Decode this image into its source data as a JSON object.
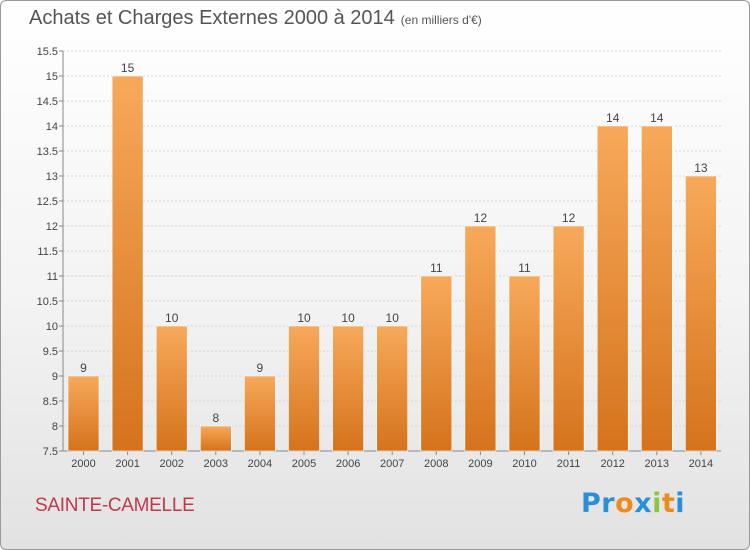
{
  "header": {
    "title": "Achats et Charges Externes 2000 à 2014",
    "unit": "(en milliers d'€)"
  },
  "footer": {
    "commune": "SAINTE-CAMELLE",
    "logo_letters": [
      "P",
      "r",
      "o",
      "x",
      "i",
      "t",
      "i"
    ],
    "logo_colors": [
      "#2a8fd6",
      "#2a8fd6",
      "#f08a1d",
      "#2a8fd6",
      "#8cc63e",
      "#f08a1d",
      "#2a8fd6"
    ]
  },
  "colors": {
    "bar_light": "#f7a95a",
    "bar_dark": "#d5731c",
    "grid": "#d6d6d6",
    "axis": "#888888",
    "text": "#444444"
  },
  "chart_data": {
    "type": "bar",
    "title": "Achats et Charges Externes 2000 à 2014",
    "subtitle": "(en milliers d'€)",
    "xlabel": "",
    "ylabel": "",
    "categories": [
      "2000",
      "2001",
      "2002",
      "2003",
      "2004",
      "2005",
      "2006",
      "2007",
      "2008",
      "2009",
      "2010",
      "2011",
      "2012",
      "2013",
      "2014"
    ],
    "values": [
      9,
      15,
      10,
      8,
      9,
      10,
      10,
      10,
      11,
      12,
      11,
      12,
      14,
      14,
      13
    ],
    "ylim": [
      7.5,
      15.5
    ],
    "yticks": [
      "7.5",
      "8",
      "8.5",
      "9",
      "9.5",
      "10",
      "10.5",
      "11",
      "11.5",
      "12",
      "12.5",
      "13",
      "13.5",
      "14",
      "14.5",
      "15",
      "15.5"
    ],
    "grid": true,
    "legend": "none"
  }
}
